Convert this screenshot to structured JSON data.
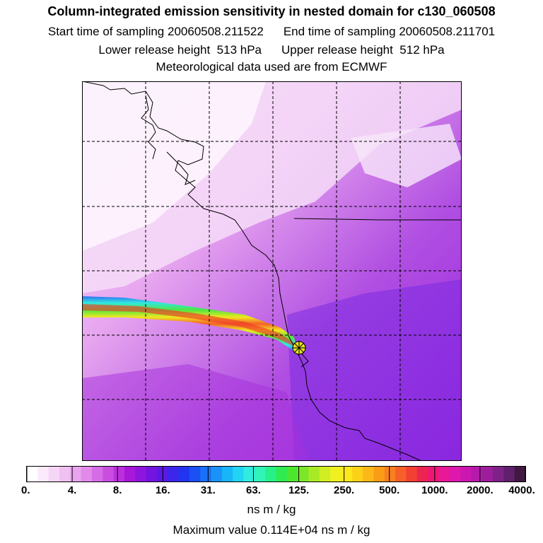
{
  "title": {
    "line1": "Column-integrated emission sensitivity in nested domain for c130_060508",
    "start_label": "Start time of sampling",
    "start_value": "20060508.211522",
    "end_label": "End time of sampling",
    "end_value": "20060508.211701",
    "lower_label": "Lower release height",
    "lower_value": "513 hPa",
    "upper_label": "Upper release height",
    "upper_value": "512 hPa",
    "line4": "Meteorological data used are from ECMWF"
  },
  "colorbar": {
    "labels": [
      "0.",
      "4.",
      "8.",
      "16.",
      "31.",
      "63.",
      "125.",
      "250.",
      "500.",
      "1000.",
      "2000.",
      "4000."
    ],
    "colors": [
      "#ffffff",
      "#fbeafb",
      "#f6d6f6",
      "#f0c0f2",
      "#e9a4ee",
      "#e18ae9",
      "#d66ce5",
      "#c94ee0",
      "#bb30dc",
      "#a818d8",
      "#8e16dc",
      "#7414e0",
      "#5a1ae6",
      "#3c26ec",
      "#2234f0",
      "#1a50f4",
      "#1a70f6",
      "#1a92f8",
      "#1ab4f8",
      "#22d4f4",
      "#30ece0",
      "#30f4b8",
      "#28f088",
      "#30ea52",
      "#4ce630",
      "#7ce62a",
      "#a8ea26",
      "#d0ee22",
      "#f0f020",
      "#fce81c",
      "#fcd218",
      "#fcb818",
      "#fa9c18",
      "#f88020",
      "#f66028",
      "#f24032",
      "#ee2450",
      "#ec1874",
      "#e81896",
      "#de18ac",
      "#cc18b0",
      "#b61aaa",
      "#9c1e9c",
      "#7e2288",
      "#60206c",
      "#401840"
    ],
    "units": "ns m / kg"
  },
  "max_value_text": "Maximum value  0.114E+04 ns m / kg",
  "map": {
    "source": "ECMWF",
    "release_marker": "release-location-star"
  }
}
